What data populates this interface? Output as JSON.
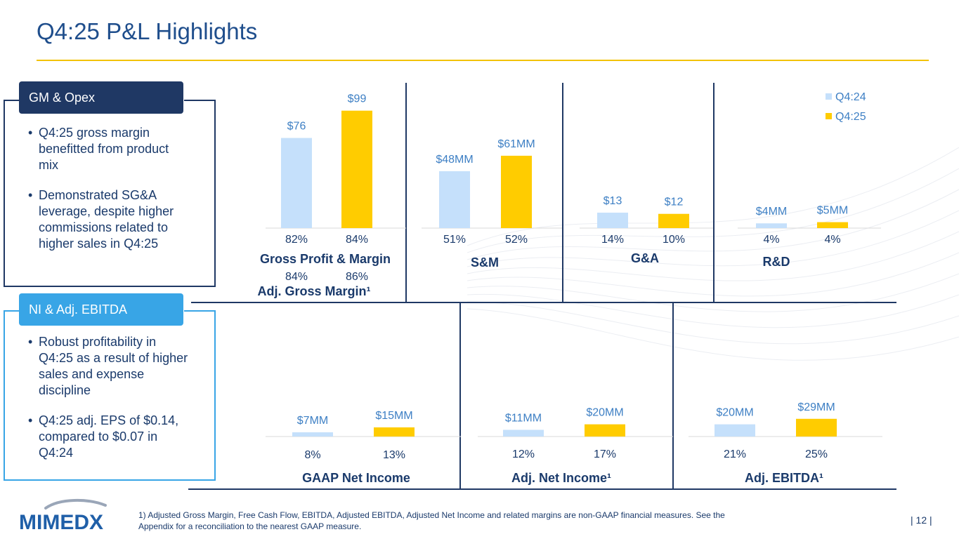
{
  "page": {
    "title": "Q4:25 P&L Highlights",
    "page_number": "| 12 |",
    "footnote": "1) Adjusted Gross Margin, Free Cash Flow, EBITDA, Adjusted EBITDA, Adjusted Net Income and related margins are non-GAAP financial measures. See the Appendix for a reconciliation to the nearest GAAP measure.",
    "logo_text": "MIMEDX"
  },
  "panels": {
    "gm_opex": {
      "tag": "GM & Opex",
      "bullets": [
        "Q4:25 gross margin benefitted from product mix",
        "Demonstrated SG&A leverage, despite higher commissions related to higher sales in Q4:25"
      ]
    },
    "ni_ebitda": {
      "tag": "NI & Adj. EBITDA",
      "bullets": [
        "Robust profitability in Q4:25 as a result of higher sales and expense discipline",
        "Q4:25 adj. EPS of $0.14, compared to $0.07 in Q4:24"
      ]
    }
  },
  "colors": {
    "q424": "#c5e0fb",
    "q425": "#ffcc00",
    "value_label": "#3d7fc4",
    "text": "#1a3a6b"
  },
  "chart_data": [
    {
      "type": "bar",
      "id": "gross-profit",
      "title": "Gross Profit & Margin",
      "categories": [
        "Q4:24",
        "Q4:25"
      ],
      "values": [
        76,
        99
      ],
      "labels": [
        "$76",
        "$99"
      ],
      "margins": [
        "82%",
        "84%"
      ],
      "sub_title": "Adj. Gross Margin¹",
      "sub_margins": [
        "84%",
        "86%"
      ]
    },
    {
      "type": "bar",
      "id": "sm",
      "title": "S&M",
      "categories": [
        "Q4:24",
        "Q4:25"
      ],
      "values": [
        48,
        61
      ],
      "labels": [
        "$48MM",
        "$61MM"
      ],
      "margins": [
        "51%",
        "52%"
      ]
    },
    {
      "type": "bar",
      "id": "ga",
      "title": "G&A",
      "categories": [
        "Q4:24",
        "Q4:25"
      ],
      "values": [
        13,
        12
      ],
      "labels": [
        "$13",
        "$12"
      ],
      "margins": [
        "14%",
        "10%"
      ]
    },
    {
      "type": "bar",
      "id": "rd",
      "title": "R&D",
      "categories": [
        "Q4:24",
        "Q4:25"
      ],
      "values": [
        4,
        5
      ],
      "labels": [
        "$4MM",
        "$5MM"
      ],
      "margins": [
        "4%",
        "4%"
      ],
      "legend": [
        "Q4:24",
        "Q4:25"
      ]
    },
    {
      "type": "bar",
      "id": "gaap-ni",
      "title": "GAAP Net Income",
      "categories": [
        "Q4:24",
        "Q4:25"
      ],
      "values": [
        7,
        15
      ],
      "labels": [
        "$7MM",
        "$15MM"
      ],
      "margins": [
        "8%",
        "13%"
      ]
    },
    {
      "type": "bar",
      "id": "adj-ni",
      "title": "Adj. Net Income¹",
      "categories": [
        "Q4:24",
        "Q4:25"
      ],
      "values": [
        11,
        20
      ],
      "labels": [
        "$11MM",
        "$20MM"
      ],
      "margins": [
        "12%",
        "17%"
      ]
    },
    {
      "type": "bar",
      "id": "adj-ebitda",
      "title": "Adj. EBITDA¹",
      "categories": [
        "Q4:24",
        "Q4:25"
      ],
      "values": [
        20,
        29
      ],
      "labels": [
        "$20MM",
        "$29MM"
      ],
      "margins": [
        "21%",
        "25%"
      ]
    }
  ]
}
